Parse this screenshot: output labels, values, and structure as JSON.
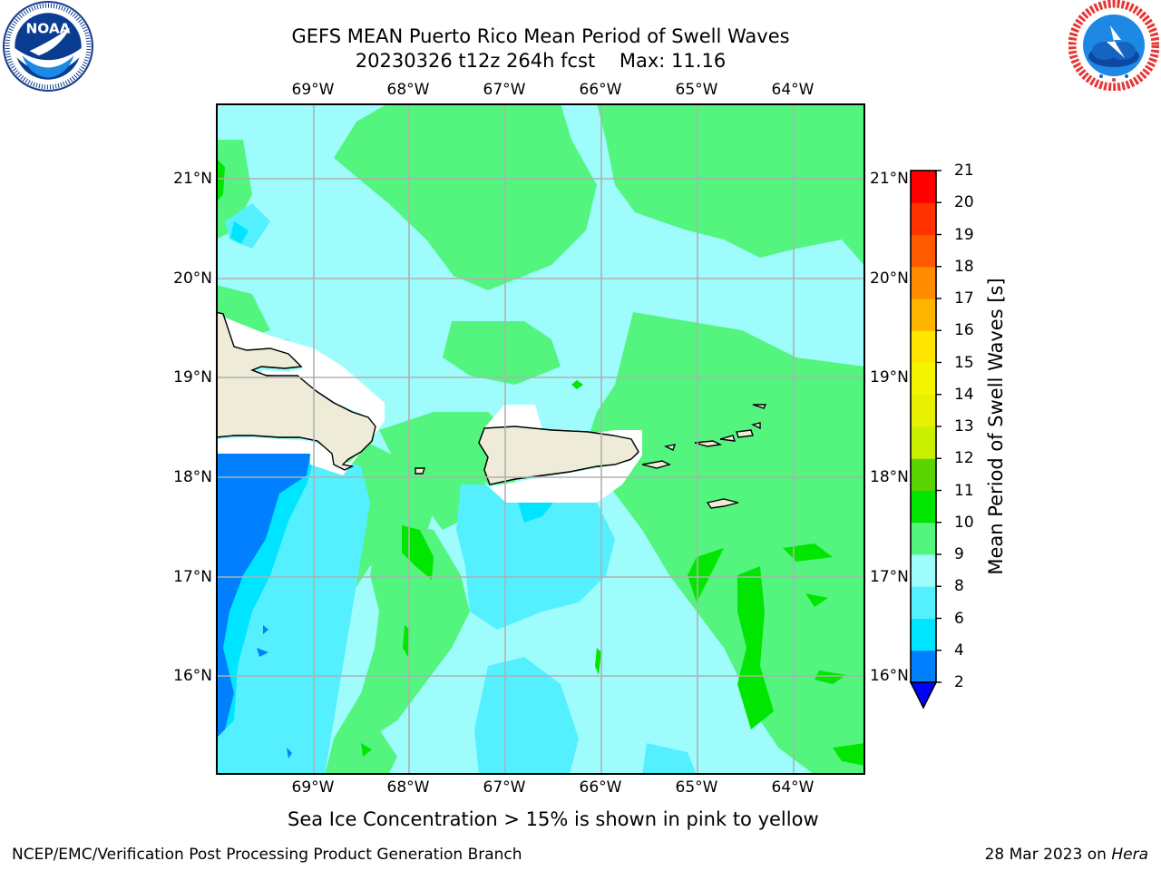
{
  "title": {
    "line1": "GEFS MEAN Puerto Rico Mean Period of Swell Waves",
    "line2": "20230326 t12z 264h fcst    Max: 11.16"
  },
  "logos": {
    "left": {
      "icon": "noaa-logo",
      "text": "NOAA",
      "ring_text": "NATIONAL OCEANIC AND ATMOSPHERIC ADMINISTRATION · U.S. DEPARTMENT OF COMMERCE"
    },
    "right": {
      "icon": "nws-logo",
      "ring_text": "NATIONAL WEATHER SERVICE"
    }
  },
  "map": {
    "longitude_labels": [
      "69°W",
      "68°W",
      "67°W",
      "66°W",
      "65°W",
      "64°W"
    ],
    "latitude_labels": [
      "21°N",
      "20°N",
      "19°N",
      "18°N",
      "17°N",
      "16°N"
    ],
    "lon_range": [
      -70.0,
      -63.25
    ],
    "lat_range": [
      15.0,
      21.75
    ],
    "gridlines": true,
    "land_color": "#eeebd9",
    "coastline_color": "#000000"
  },
  "colorbar": {
    "label": "Mean Period of Swell Waves [s]",
    "ticks": [
      "21",
      "20",
      "19",
      "18",
      "17",
      "16",
      "15",
      "14",
      "13",
      "12",
      "11",
      "10",
      "9",
      "8",
      "6",
      "4",
      "2"
    ],
    "bins": [
      {
        "range": "2-4",
        "color": "#0080ff"
      },
      {
        "range": "4-6",
        "color": "#00e5ff"
      },
      {
        "range": "6-8",
        "color": "#54f0ff"
      },
      {
        "range": "8-9",
        "color": "#9ffcfc"
      },
      {
        "range": "9-10",
        "color": "#53f57e"
      },
      {
        "range": "10-11",
        "color": "#00e600"
      },
      {
        "range": "11-12",
        "color": "#5ad400"
      },
      {
        "range": "12-13",
        "color": "#c8f000"
      },
      {
        "range": "13-14",
        "color": "#e6f000"
      },
      {
        "range": "14-15",
        "color": "#f5f500"
      },
      {
        "range": "15-16",
        "color": "#ffe600"
      },
      {
        "range": "16-17",
        "color": "#ffb400"
      },
      {
        "range": "17-18",
        "color": "#ff8c00"
      },
      {
        "range": "18-19",
        "color": "#ff5a00"
      },
      {
        "range": "19-20",
        "color": "#ff3200"
      },
      {
        "range": "20-21",
        "color": "#ff0000"
      }
    ],
    "extend_low_color": "#0000ff"
  },
  "note": "Sea Ice Concentration > 15% is shown in pink to yellow",
  "footer": {
    "left": "NCEP/EMC/Verification Post Processing Product Generation Branch",
    "right_prefix": "28 Mar 2023 on ",
    "right_host": "Hera"
  }
}
